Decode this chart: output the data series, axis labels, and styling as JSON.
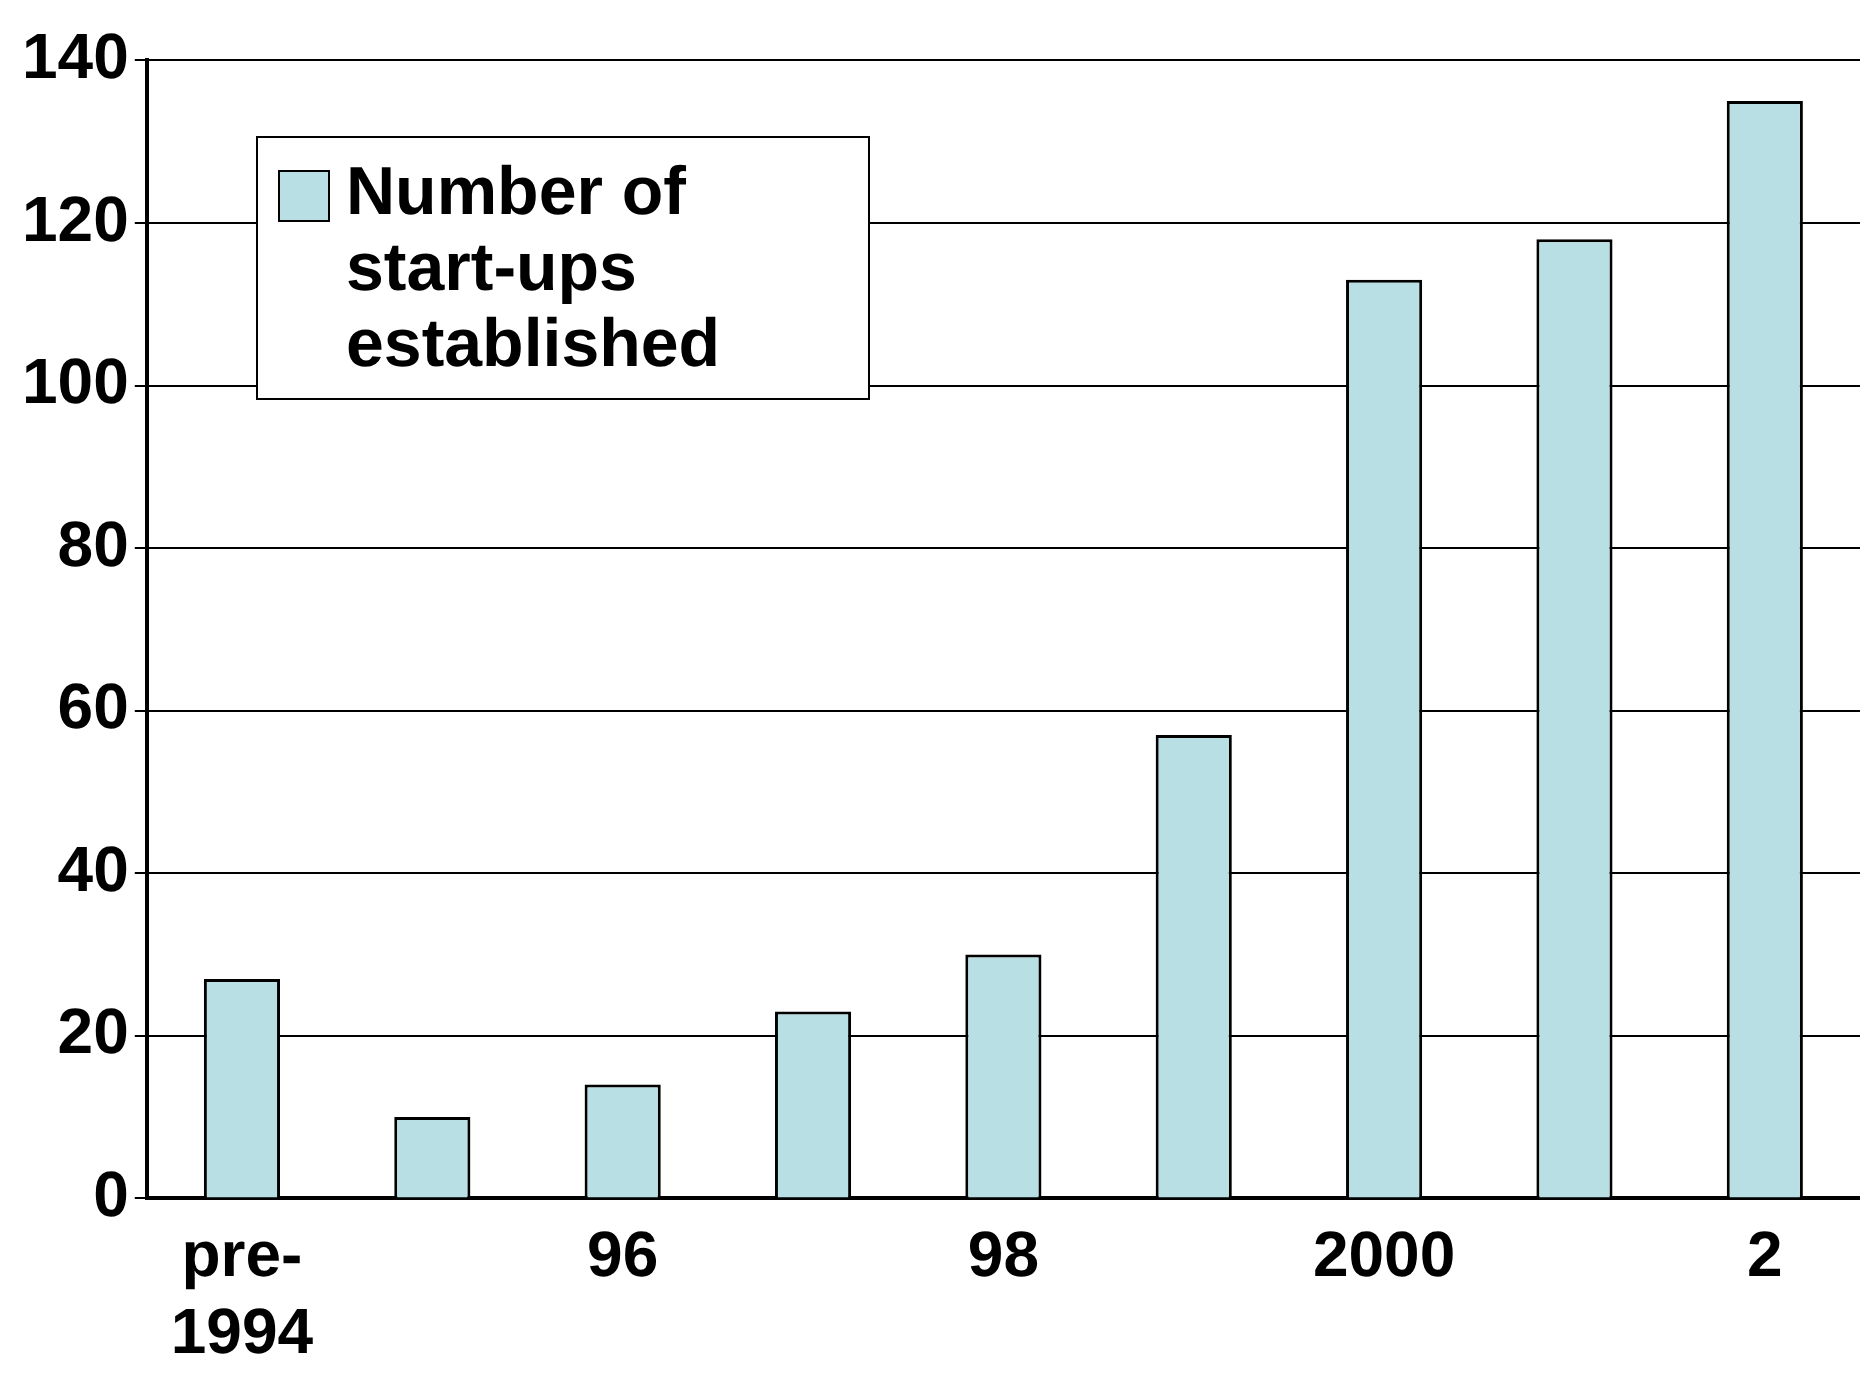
{
  "chart_data": {
    "type": "bar",
    "categories": [
      "pre-\n1994",
      null,
      "96",
      null,
      "98",
      null,
      "2000",
      null,
      "2"
    ],
    "series": [
      {
        "name": "Number of start-ups established",
        "color": "#b8e0e4",
        "values": [
          27,
          10,
          14,
          23,
          30,
          57,
          113,
          118,
          135
        ]
      }
    ],
    "ylim": [
      0,
      140
    ],
    "yticks": [
      0,
      20,
      40,
      60,
      80,
      100,
      120,
      140
    ],
    "grid": "y",
    "legend": "top left"
  }
}
